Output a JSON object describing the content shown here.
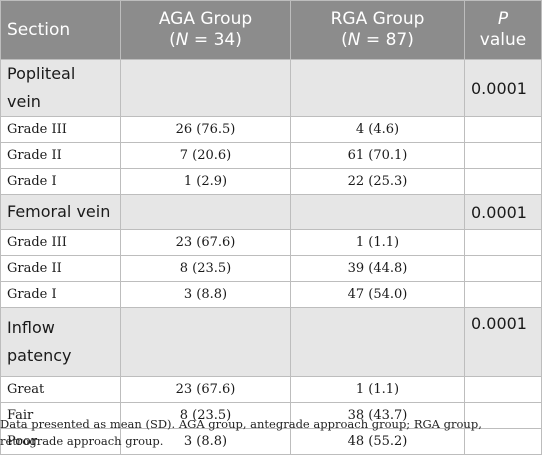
{
  "header": {
    "section": "Section",
    "aga_line1": "AGA Group",
    "aga_line2_n": "N",
    "aga_line2_rest": " = 34)",
    "aga_line2_open": "(",
    "rga_line1": "RGA Group",
    "rga_line2_open": "(",
    "rga_line2_n": "N",
    "rga_line2_rest": " = 87)",
    "p_line1": "P",
    "p_line2": "value"
  },
  "sections": [
    {
      "label": "Popliteal vein",
      "p": "0.0001",
      "rows": [
        {
          "label": "Grade III",
          "aga": "26 (76.5)",
          "rga": "4 (4.6)",
          "p": ""
        },
        {
          "label": "Grade II",
          "aga": "7 (20.6)",
          "rga": "61 (70.1)",
          "p": ""
        },
        {
          "label": "Grade I",
          "aga": "1 (2.9)",
          "rga": "22 (25.3)",
          "p": ""
        }
      ]
    },
    {
      "label": "Femoral vein",
      "p": "0.0001",
      "rows": [
        {
          "label": "Grade III",
          "aga": "23 (67.6)",
          "rga": "1 (1.1)",
          "p": ""
        },
        {
          "label": "Grade II",
          "aga": "8 (23.5)",
          "rga": "39 (44.8)",
          "p": ""
        },
        {
          "label": "Grade I",
          "aga": "3 (8.8)",
          "rga": "47 (54.0)",
          "p": ""
        }
      ]
    },
    {
      "label_line1": "Inflow",
      "label_line2": "patency",
      "p": "0.0001",
      "rows": [
        {
          "label": "Great",
          "aga": "23 (67.6)",
          "rga": "1 (1.1)",
          "p": ""
        },
        {
          "label": "Fair",
          "aga": "8 (23.5)",
          "rga": "38 (43.7)",
          "p": ""
        },
        {
          "label": "Poor",
          "aga": "3 (8.8)",
          "rga": "48 (55.2)",
          "p": ""
        }
      ]
    }
  ],
  "footnote": "Data presented as mean (SD). AGA group, antegrade approach group; RGA group, retrograde approach group."
}
